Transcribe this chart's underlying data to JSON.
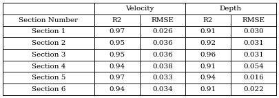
{
  "header1": [
    "",
    "Velocity",
    "",
    "Depth",
    ""
  ],
  "header2": [
    "Section Number",
    "R2",
    "RMSE",
    "R2",
    "RMSE"
  ],
  "rows": [
    [
      "Section 1",
      "0.97",
      "0.026",
      "0.91",
      "0.030"
    ],
    [
      "Section 2",
      "0.95",
      "0.036",
      "0.92",
      "0.031"
    ],
    [
      "Section 3",
      "0.95",
      "0.036",
      "0.96",
      "0.031"
    ],
    [
      "Section 4",
      "0.94",
      "0.038",
      "0.91",
      "0.054"
    ],
    [
      "Section 5",
      "0.97",
      "0.033",
      "0.94",
      "0.016"
    ],
    [
      "Section 6",
      "0.94",
      "0.034",
      "0.91",
      "0.022"
    ]
  ],
  "figsize": [
    4.05,
    1.42
  ],
  "dpi": 100,
  "font_size": 7.5,
  "font_family": "serif",
  "edge_color": "#000000",
  "text_color": "#000000",
  "lw": 0.6
}
